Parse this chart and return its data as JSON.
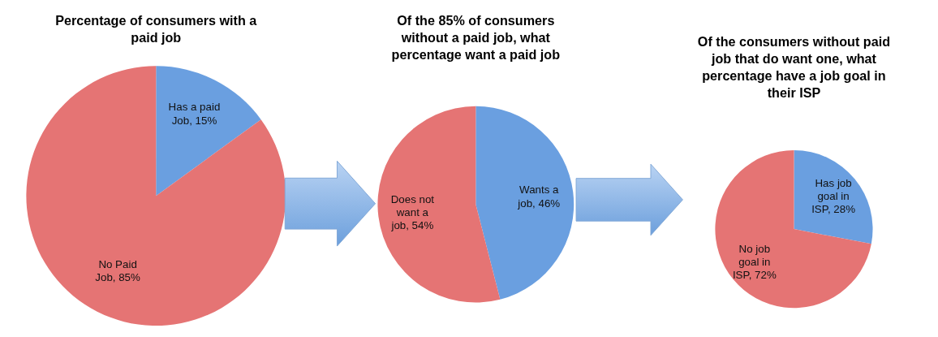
{
  "chart_data": [
    {
      "type": "pie",
      "title": "Percentage of consumers with a paid job",
      "categories": [
        "Has a paid Job",
        "No Paid Job"
      ],
      "values": [
        15,
        85
      ],
      "value_labels": [
        "15%",
        "85%"
      ],
      "colors": [
        "#6a9fe0",
        "#e57474"
      ]
    },
    {
      "type": "pie",
      "title": "Of the 85% of consumers without a paid job, what percentage want a paid job",
      "categories": [
        "Wants a job",
        "Does not want a job"
      ],
      "values": [
        46,
        54
      ],
      "value_labels": [
        "46%",
        "54%"
      ],
      "colors": [
        "#6a9fe0",
        "#e57474"
      ]
    },
    {
      "type": "pie",
      "title": "Of the consumers without paid job that do want one, what percentage have a job goal in their ISP",
      "categories": [
        "Has job goal in ISP",
        "No job goal in ISP"
      ],
      "values": [
        28,
        72
      ],
      "value_labels": [
        "28%",
        "72%"
      ],
      "colors": [
        "#6a9fe0",
        "#e57474"
      ]
    }
  ]
}
